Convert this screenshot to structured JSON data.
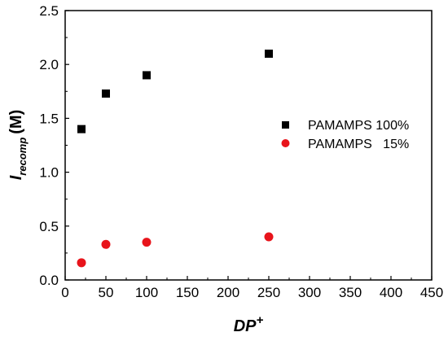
{
  "chart_data": {
    "type": "scatter",
    "xlabel": "DP",
    "xlabel_sup": "+",
    "ylabel": "I",
    "ylabel_sub": "recomp",
    "ylabel_unit": "(M)",
    "xlim": [
      0,
      450
    ],
    "ylim": [
      0.0,
      2.5
    ],
    "xticks": [
      0,
      50,
      100,
      150,
      200,
      250,
      300,
      350,
      400,
      450
    ],
    "yticks": [
      0.0,
      0.5,
      1.0,
      1.5,
      2.0,
      2.5
    ],
    "ytick_labels": [
      "0.0",
      "0.5",
      "1.0",
      "1.5",
      "2.0",
      "2.5"
    ],
    "grid": false,
    "legend_position": "right",
    "series": [
      {
        "name": "PAMAMPS 100%",
        "marker": "square",
        "color": "#000000",
        "x": [
          20,
          50,
          100,
          250
        ],
        "y": [
          1.4,
          1.73,
          1.9,
          2.1
        ]
      },
      {
        "name": "PAMAMPS   15%",
        "marker": "circle",
        "color": "#e8141b",
        "x": [
          20,
          50,
          100,
          250
        ],
        "y": [
          0.16,
          0.33,
          0.35,
          0.4
        ]
      }
    ]
  }
}
